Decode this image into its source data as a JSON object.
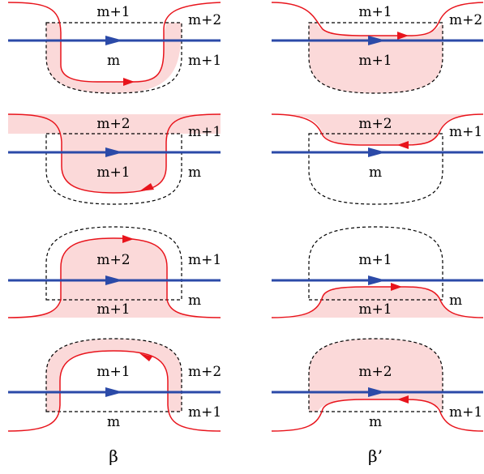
{
  "columns": [
    {
      "label": "β"
    },
    {
      "label": "β’"
    }
  ],
  "panels": [
    {
      "id": "beta-1",
      "labels": {
        "top": "m+1",
        "right_top": "m+2",
        "center": "m",
        "right_bottom": "m+1"
      }
    },
    {
      "id": "betap-1",
      "labels": {
        "top": "m+1",
        "right_top": "m+2",
        "center": "m+1"
      }
    },
    {
      "id": "beta-2",
      "labels": {
        "top": "m+2",
        "right_top": "m+1",
        "center": "m+1",
        "right_bottom": "m"
      }
    },
    {
      "id": "betap-2",
      "labels": {
        "top": "m+2",
        "right_top": "m+1",
        "center": "m"
      }
    },
    {
      "id": "beta-3",
      "labels": {
        "center": "m+2",
        "right_top": "m+1",
        "bottom": "m+1",
        "right_bottom": "m"
      }
    },
    {
      "id": "betap-3",
      "labels": {
        "center": "m+1",
        "bottom": "m+1",
        "right_bottom": "m"
      }
    },
    {
      "id": "beta-4",
      "labels": {
        "center": "m+1",
        "right_top": "m+2",
        "bottom": "m",
        "right_bottom": "m+1"
      }
    },
    {
      "id": "betap-4",
      "labels": {
        "center": "m+2",
        "bottom": "m",
        "right_bottom": "m+1"
      }
    }
  ],
  "colors": {
    "region_fill": "#fbd9d9",
    "curve": "#e8141c",
    "line": "#2b4aa8",
    "dashed": "#000000"
  }
}
